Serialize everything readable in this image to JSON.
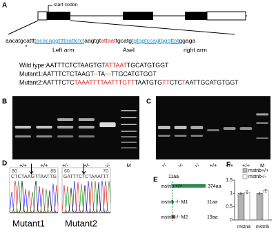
{
  "panel_labels": [
    "A",
    "B",
    "C",
    "D",
    "E",
    "F"
  ],
  "panel_a": {
    "start_codon": "start codon",
    "sequence": [
      {
        "text": "aacatgcattt",
        "style": "plain"
      },
      {
        "text": "tacacaggttttaattctct",
        "style": "arm"
      },
      {
        "text": "aagtgt",
        "style": "plain"
      },
      {
        "text": "attaat",
        "style": "site"
      },
      {
        "text": "tgcatg",
        "style": "plain"
      },
      {
        "text": "tgtggtccagtgggttat",
        "style": "arm"
      },
      {
        "text": "ggaga",
        "style": "plain"
      }
    ],
    "left_arm": "Left arm",
    "site": "AseI",
    "right_arm": "right arm",
    "alignments": [
      {
        "label": "Wild type:",
        "segments": [
          {
            "text": "AATTTCTCTAAGTGT",
            "style": "plain"
          },
          {
            "text": "ATTAAT",
            "style": "site"
          },
          {
            "text": "TGCATGTGGT",
            "style": "plain"
          }
        ]
      },
      {
        "label": "Mutant1:",
        "segments": [
          {
            "text": "AATTTCTCTAAGT",
            "style": "plain"
          },
          {
            "text": "--",
            "style": "site"
          },
          {
            "text": "TA",
            "style": "plain"
          },
          {
            "text": "---",
            "style": "site"
          },
          {
            "text": "TTGCATGTGGT",
            "style": "plain"
          }
        ]
      },
      {
        "label": "Mutant2:",
        "segments": [
          {
            "text": "AATTTCTC",
            "style": "plain"
          },
          {
            "text": "TAAATTTTAATTTGTT",
            "style": "site"
          },
          {
            "text": "TAATGTG",
            "style": "plain"
          },
          {
            "text": "TT",
            "style": "site"
          },
          {
            "text": "CTC",
            "style": "plain"
          },
          {
            "text": "T",
            "style": "site"
          },
          {
            "text": "AATTGCATGTGGT",
            "style": "plain"
          }
        ]
      }
    ]
  },
  "panel_b": {
    "lanes": [
      "+/+",
      "+/+",
      "+/-",
      "+/-",
      "-/-",
      "M"
    ]
  },
  "panel_c": {
    "lanes": [
      "-/-",
      "-/-",
      "-/-",
      "+/+",
      "+/+",
      "+/+",
      "M"
    ]
  },
  "panel_d": {
    "traces": [
      {
        "name": "Mutant1",
        "bases": "CTCTAAGTTAATTG",
        "positions": [
          80,
          85
        ]
      },
      {
        "name": "Mutant2",
        "bases": "GATTTCTCTAAATTT",
        "positions": [
          60,
          70
        ]
      }
    ]
  },
  "panel_e": {
    "marker": "11aa",
    "rows": [
      {
        "label": "mstnb +/+",
        "length": "374aa"
      },
      {
        "label": "mstnb -/- M1",
        "length": "11aa"
      },
      {
        "label": "mstnb -/- M2",
        "length": "19aa"
      }
    ]
  },
  "chart_data": {
    "type": "bar",
    "categories": [
      "mstna",
      "mstnb"
    ],
    "series": [
      {
        "name": "mstnb+/+",
        "color": "#b3b3b3",
        "values": [
          1.0,
          1.0
        ],
        "errors": [
          0.05,
          0.05
        ]
      },
      {
        "name": "mstnb-/-",
        "color": "#ffffff",
        "values": [
          1.05,
          1.1
        ],
        "errors": [
          0.05,
          0.06
        ]
      }
    ],
    "ylim": [
      0,
      1.5
    ],
    "yticks": [
      0,
      0.5,
      1,
      1.5
    ]
  }
}
